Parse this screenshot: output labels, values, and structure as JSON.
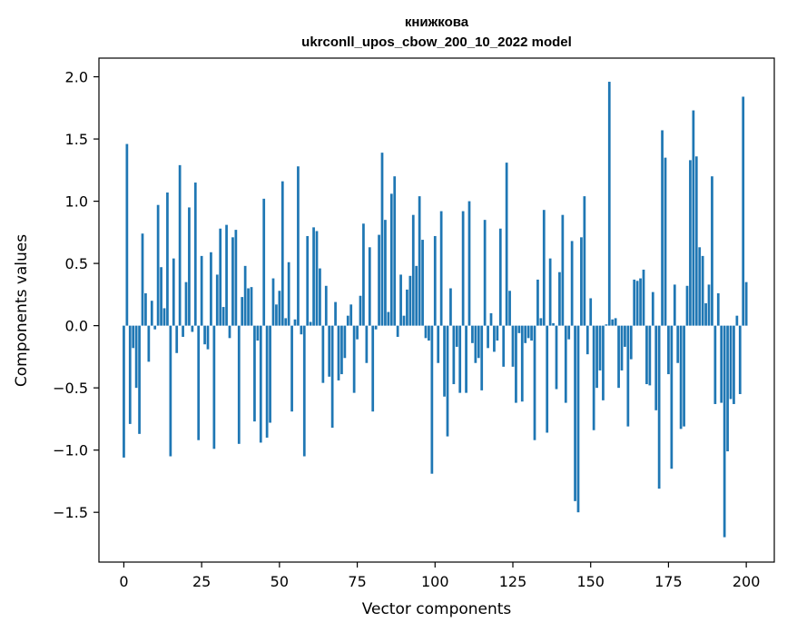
{
  "chart_data": {
    "type": "bar",
    "title_line1": "книжкова",
    "title_line2": "ukrconll_upos_cbow_200_10_2022 model",
    "xlabel": "Vector components",
    "ylabel": "Components values",
    "xlim": [
      -8,
      209
    ],
    "ylim": [
      -1.9,
      2.15
    ],
    "xticks": [
      0,
      25,
      50,
      75,
      100,
      125,
      150,
      175,
      200
    ],
    "xtick_labels": [
      "0",
      "25",
      "50",
      "75",
      "100",
      "125",
      "150",
      "175",
      "200"
    ],
    "yticks": [
      -1.5,
      -1.0,
      -0.5,
      0.0,
      0.5,
      1.0,
      1.5,
      2.0
    ],
    "ytick_labels": [
      "−1.5",
      "−1.0",
      "−0.5",
      "0.0",
      "0.5",
      "1.0",
      "1.5",
      "2.0"
    ],
    "bar_color": "#1f77b4",
    "values": [
      -1.06,
      1.46,
      -0.79,
      -0.18,
      -0.5,
      -0.87,
      0.74,
      0.26,
      -0.29,
      0.2,
      -0.03,
      0.97,
      0.47,
      0.14,
      1.07,
      -1.05,
      0.54,
      -0.22,
      1.29,
      -0.09,
      0.35,
      0.95,
      -0.05,
      1.15,
      -0.92,
      0.56,
      -0.15,
      -0.19,
      0.59,
      -0.99,
      0.41,
      0.78,
      0.15,
      0.81,
      -0.1,
      0.71,
      0.77,
      -0.95,
      0.23,
      0.48,
      0.3,
      0.31,
      -0.77,
      -0.12,
      -0.94,
      1.02,
      -0.9,
      -0.78,
      0.38,
      0.17,
      0.28,
      1.16,
      0.06,
      0.51,
      -0.69,
      0.05,
      1.28,
      -0.07,
      -1.05,
      0.72,
      0.03,
      0.79,
      0.76,
      0.46,
      -0.46,
      0.32,
      -0.41,
      -0.82,
      0.19,
      -0.44,
      -0.39,
      -0.26,
      0.08,
      0.17,
      -0.54,
      -0.11,
      0.24,
      0.82,
      -0.3,
      0.63,
      -0.69,
      -0.03,
      0.73,
      1.39,
      0.85,
      0.11,
      1.06,
      1.2,
      -0.09,
      0.41,
      0.08,
      0.29,
      0.4,
      0.89,
      0.48,
      1.04,
      0.69,
      -0.1,
      -0.12,
      -1.19,
      0.72,
      -0.3,
      0.92,
      -0.57,
      -0.89,
      0.3,
      -0.47,
      -0.17,
      -0.54,
      0.92,
      -0.54,
      1.0,
      -0.14,
      -0.3,
      -0.26,
      -0.52,
      0.85,
      -0.18,
      0.1,
      -0.21,
      -0.12,
      0.78,
      -0.33,
      1.31,
      0.28,
      -0.33,
      -0.62,
      -0.06,
      -0.61,
      -0.14,
      -0.1,
      -0.12,
      -0.92,
      0.37,
      0.06,
      0.93,
      -0.86,
      0.54,
      0.02,
      -0.51,
      0.43,
      0.89,
      -0.62,
      -0.11,
      0.68,
      -1.41,
      -1.5,
      0.71,
      1.04,
      -0.23,
      0.22,
      -0.84,
      -0.5,
      -0.36,
      -0.6,
      0.01,
      1.96,
      0.05,
      0.06,
      -0.5,
      -0.36,
      -0.17,
      -0.81,
      -0.27,
      0.37,
      0.36,
      0.38,
      0.45,
      -0.47,
      -0.48,
      0.27,
      -0.68,
      -1.31,
      1.57,
      1.35,
      -0.39,
      -1.15,
      0.33,
      -0.3,
      -0.83,
      -0.81,
      0.32,
      1.33,
      1.73,
      1.36,
      0.63,
      0.56,
      0.18,
      0.33,
      1.2,
      -0.63,
      0.26,
      -0.62,
      -1.7,
      -1.01,
      -0.59,
      -0.63,
      0.08,
      -0.55,
      1.84,
      0.35
    ]
  }
}
